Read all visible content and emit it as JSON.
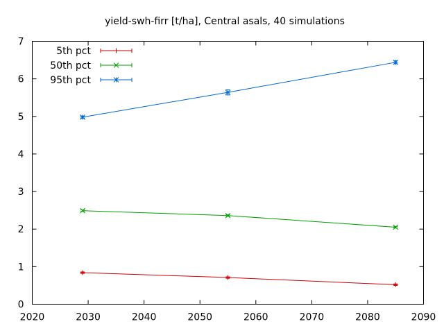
{
  "chart_data": {
    "type": "line",
    "title": "yield-swh-firr [t/ha], Central asals, 40 simulations",
    "xlabel": "",
    "ylabel": "",
    "xlim": [
      2020,
      2090
    ],
    "ylim": [
      0,
      7
    ],
    "x_ticks": [
      2020,
      2030,
      2040,
      2050,
      2060,
      2070,
      2080,
      2090
    ],
    "y_ticks": [
      0,
      1,
      2,
      3,
      4,
      5,
      6,
      7
    ],
    "grid": false,
    "legend_position": "top-left",
    "x": [
      2029,
      2055,
      2085
    ],
    "series": [
      {
        "name": "5th pct",
        "color": "#cc0000",
        "marker": "plus",
        "values": [
          0.84,
          0.71,
          0.52
        ],
        "errors": [
          0.02,
          0.02,
          0.02
        ]
      },
      {
        "name": "50th pct",
        "color": "#00a000",
        "marker": "cross",
        "values": [
          2.49,
          2.36,
          2.05
        ],
        "errors": [
          0.02,
          0.02,
          0.02
        ]
      },
      {
        "name": "95th pct",
        "color": "#0066cc",
        "marker": "star",
        "values": [
          4.98,
          5.64,
          6.44
        ],
        "errors": [
          0.03,
          0.07,
          0.04
        ]
      }
    ]
  }
}
